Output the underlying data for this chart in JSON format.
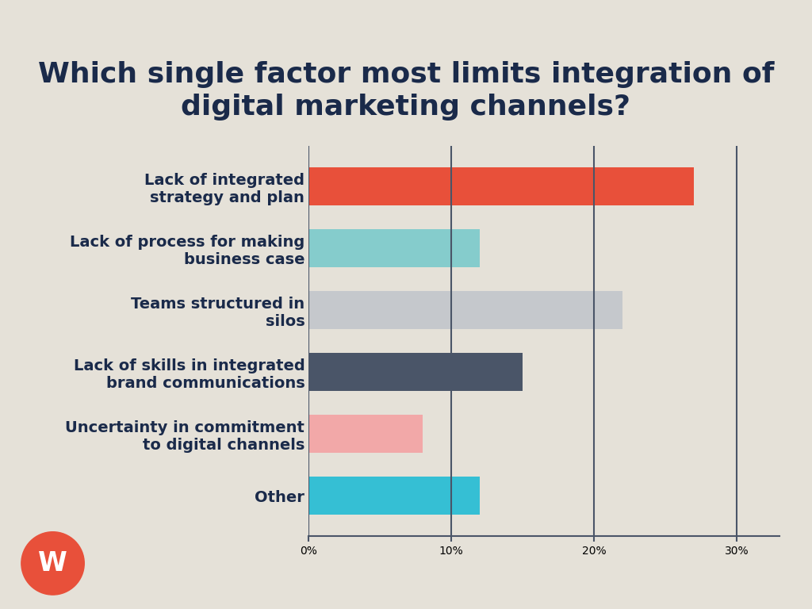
{
  "title": "Which single factor most limits integration of\ndigital marketing channels?",
  "categories": [
    "Lack of integrated\nstrategy and plan",
    "Lack of process for making\nbusiness case",
    "Teams structured in\nsilos",
    "Lack of skills in integrated\nbrand communications",
    "Uncertainty in commitment\nto digital channels",
    "Other"
  ],
  "values": [
    27,
    12,
    22,
    15,
    8,
    12
  ],
  "colors": [
    "#E8503A",
    "#85CCCC",
    "#C5C8CC",
    "#4A5568",
    "#F2A8A8",
    "#35BFD4"
  ],
  "background_color": "#E5E1D8",
  "text_color": "#1A2A4A",
  "title_fontsize": 26,
  "label_fontsize": 14,
  "tick_fontsize": 14,
  "xlim": [
    0,
    33
  ],
  "xticks": [
    0,
    10,
    20,
    30
  ],
  "xticklabels": [
    "0%",
    "10%",
    "20%",
    "30%"
  ],
  "grid_color": "#4A5568",
  "bar_height": 0.62,
  "logo_color": "#E8503A",
  "logo_text": "W",
  "logo_text_color": "#FFFFFF"
}
